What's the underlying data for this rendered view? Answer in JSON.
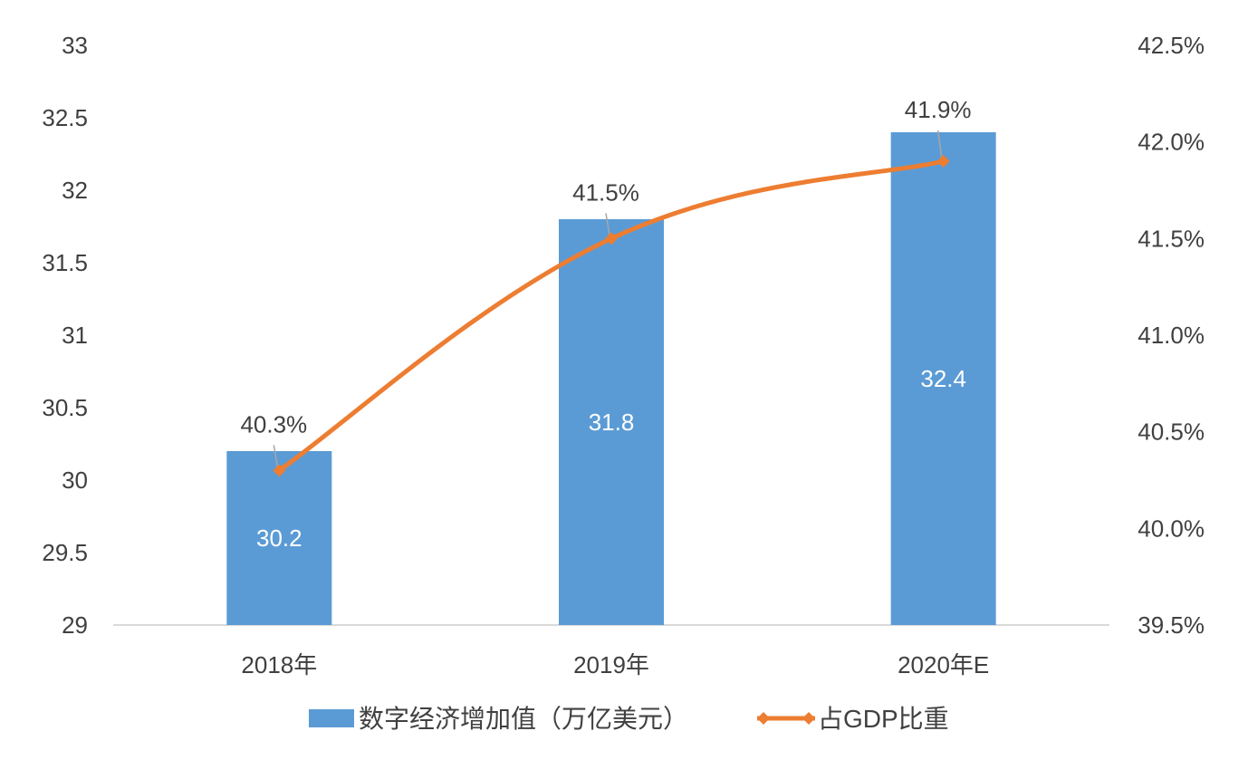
{
  "chart_data": {
    "type": "bar",
    "categories": [
      "2018年",
      "2019年",
      "2020年E"
    ],
    "series": [
      {
        "name": "数字经济增加值（万亿美元）",
        "type": "bar",
        "axis": "left",
        "values": [
          30.2,
          31.8,
          32.4
        ],
        "value_labels": [
          "30.2",
          "31.8",
          "32.4"
        ],
        "color": "#5B9BD5"
      },
      {
        "name": "占GDP比重",
        "type": "line",
        "axis": "right",
        "values": [
          40.3,
          41.5,
          41.9
        ],
        "value_labels": [
          "40.3%",
          "41.5%",
          "41.9%"
        ],
        "color": "#ED7D31",
        "marker": "diamond",
        "smooth": true
      }
    ],
    "y_left": {
      "ylim": [
        29,
        33
      ],
      "ticks": [
        "29",
        "29.5",
        "30",
        "30.5",
        "31",
        "31.5",
        "32",
        "32.5",
        "33"
      ]
    },
    "y_right": {
      "ylim": [
        39.5,
        42.5
      ],
      "ticks": [
        "39.5%",
        "40.0%",
        "40.5%",
        "41.0%",
        "41.5%",
        "42.0%",
        "42.5%"
      ]
    },
    "grid": false,
    "legend_position": "bottom",
    "axis_color": "#D9D9D9",
    "leader_line_color": "#A6A6A6"
  }
}
